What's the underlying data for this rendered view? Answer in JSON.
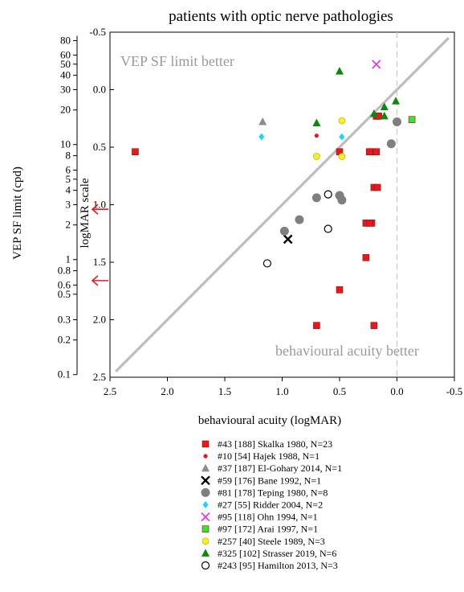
{
  "chart_data": {
    "type": "scatter",
    "title": "patients with optic nerve pathologies",
    "xlabel": "behavioural acuity (logMAR)",
    "ylabel_inner": "logMAR scale",
    "ylabel_outer": "VEP SF limit (cpd)",
    "xlim": [
      2.5,
      -0.5
    ],
    "ylim": [
      2.5,
      -0.5
    ],
    "x_ticks": [
      "2.5",
      "2.0",
      "1.5",
      "1.0",
      "0.5",
      "0.0",
      "-0.5"
    ],
    "y_ticks_logmar": [
      "-0.5",
      "0.0",
      "0.5",
      "1.0",
      "1.5",
      "2.0",
      "2.5"
    ],
    "y_ticks_cpd": [
      "80",
      "60",
      "50",
      "40",
      "30",
      "20",
      "10",
      "8",
      "6",
      "5",
      "4",
      "3",
      "2",
      "1",
      "0.8",
      "0.6",
      "0.5",
      "0.3",
      "0.2",
      "0.1"
    ],
    "annotations": {
      "upper_left": "VEP SF limit better",
      "lower_right": "behavioural acuity better"
    },
    "identity_line": true,
    "arrows_logmar": [
      1.04,
      1.66
    ],
    "legend_position": "bottom",
    "series": [
      {
        "name": "#43 [188] Skalka 1980, N=23",
        "marker": "square",
        "color": "#e31a1c",
        "points": [
          [
            2.28,
            0.54
          ],
          [
            0.5,
            0.54
          ],
          [
            0.22,
            0.54
          ],
          [
            0.18,
            0.54
          ],
          [
            0.24,
            0.54
          ],
          [
            0.18,
            0.23
          ],
          [
            0.16,
            0.23
          ],
          [
            0.2,
            0.85
          ],
          [
            0.17,
            0.85
          ],
          [
            0.27,
            1.16
          ],
          [
            0.22,
            1.16
          ],
          [
            0.24,
            1.16
          ],
          [
            0.27,
            1.46
          ],
          [
            0.5,
            1.74
          ],
          [
            0.7,
            2.05
          ],
          [
            0.2,
            2.05
          ]
        ]
      },
      {
        "name": "#10 [54] Hajek 1988, N=1",
        "marker": "dot",
        "color": "#e31a1c",
        "points": [
          [
            0.7,
            0.4
          ]
        ]
      },
      {
        "name": "#37 [187] El-Gohary 2014, N=1",
        "marker": "triangle",
        "color": "#8c8c8c",
        "points": [
          [
            1.17,
            0.28
          ]
        ]
      },
      {
        "name": "#59 [176] Bane 1992, N=1",
        "marker": "x",
        "color": "#000000",
        "points": [
          [
            0.95,
            1.3
          ]
        ]
      },
      {
        "name": "#81 [178] Teping 1980, N=8",
        "marker": "circle",
        "color": "#7f7f7f",
        "points": [
          [
            0.0,
            0.28
          ],
          [
            0.05,
            0.47
          ],
          [
            0.5,
            0.92
          ],
          [
            0.48,
            0.96
          ],
          [
            0.7,
            0.94
          ],
          [
            0.85,
            1.13
          ],
          [
            0.98,
            1.23
          ]
        ]
      },
      {
        "name": "#27 [55] Ridder 2004, N=2",
        "marker": "diamond",
        "color": "#19d6f2",
        "points": [
          [
            1.18,
            0.41
          ],
          [
            0.48,
            0.41
          ]
        ]
      },
      {
        "name": "#95 [118] Ohn 1994, N=1",
        "marker": "x",
        "color": "#e23ae6",
        "points": [
          [
            0.18,
            -0.22
          ]
        ]
      },
      {
        "name": "#97 [172] Arai 1997, N=1",
        "marker": "square",
        "color": "#33e633",
        "points": [
          [
            -0.13,
            0.26
          ]
        ]
      },
      {
        "name": "#257 [40] Steele 1989, N=3",
        "marker": "circle",
        "color": "#f5f122",
        "points": [
          [
            0.48,
            0.27
          ],
          [
            0.7,
            0.58
          ],
          [
            0.48,
            0.58
          ]
        ]
      },
      {
        "name": "#325 [102] Strasser 2019, N=6",
        "marker": "triangle",
        "color": "#0a8a0a",
        "points": [
          [
            0.5,
            -0.16
          ],
          [
            0.7,
            0.29
          ],
          [
            0.2,
            0.21
          ],
          [
            0.11,
            0.23
          ],
          [
            0.11,
            0.15
          ],
          [
            0.01,
            0.1
          ]
        ]
      },
      {
        "name": "#243 [95] Hamilton 2013, N=3",
        "marker": "open-circle",
        "color": "#000000",
        "points": [
          [
            0.6,
            0.91
          ],
          [
            0.6,
            1.21
          ],
          [
            1.13,
            1.51
          ]
        ]
      }
    ]
  }
}
